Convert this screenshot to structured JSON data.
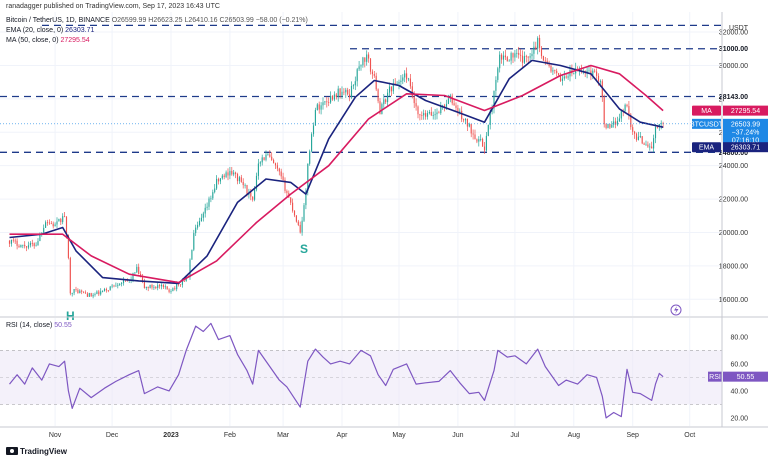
{
  "header": {
    "publisher": "ranadagger published on TradingView.com, Sep 17, 2023 16:43 UTC",
    "symbol_line": "Bitcoin / TetherUS, 1D, BINANCE",
    "ohlc": "O26599.99 H26623.25 L26410.16 C26503.99 −58.00 (−0.21%)",
    "ema_label": "EMA (20, close, 0)",
    "ema_value": "26303.71",
    "ma_label": "MA (50, close, 0)",
    "ma_value": "27295.54",
    "rsi_label": "RSI (14, close)",
    "rsi_value": "50.55"
  },
  "footer": {
    "brand": "TradingView"
  },
  "colors": {
    "ema": "#1a237e",
    "ma": "#d81b60",
    "up": "#26a69a",
    "down": "#ef5350",
    "rsi": "#7e57c2",
    "level": "#1e3a8a",
    "price_tag": "#1e88e5"
  },
  "chart_data": [
    {
      "type": "candlestick",
      "title": "Bitcoin / TetherUS, 1D, BINANCE",
      "currency": "USDT",
      "x_ticks": [
        "Nov",
        "Dec",
        "2023",
        "Feb",
        "Mar",
        "Apr",
        "May",
        "Jun",
        "Jul",
        "Aug",
        "Sep",
        "Oct"
      ],
      "y_ticks": [
        16000,
        18000,
        20000,
        22000,
        24000,
        26000,
        28000,
        30000,
        32000
      ],
      "ylim": [
        15000,
        33200
      ],
      "close_path": [
        [
          "2022-10-08",
          19500
        ],
        [
          "2022-10-15",
          19200
        ],
        [
          "2022-10-22",
          19300
        ],
        [
          "2022-10-27",
          20700
        ],
        [
          "2022-11-01",
          20400
        ],
        [
          "2022-11-06",
          21000
        ],
        [
          "2022-11-08",
          18400
        ],
        [
          "2022-11-09",
          16500
        ],
        [
          "2022-11-13",
          16500
        ],
        [
          "2022-11-20",
          16200
        ],
        [
          "2022-11-27",
          16500
        ],
        [
          "2022-12-04",
          17000
        ],
        [
          "2022-12-10",
          17100
        ],
        [
          "2022-12-14",
          17800
        ],
        [
          "2022-12-18",
          16700
        ],
        [
          "2022-12-25",
          16800
        ],
        [
          "2022-12-31",
          16550
        ],
        [
          "2023-01-05",
          16850
        ],
        [
          "2023-01-10",
          17400
        ],
        [
          "2023-01-13",
          19900
        ],
        [
          "2023-01-18",
          21000
        ],
        [
          "2023-01-25",
          23000
        ],
        [
          "2023-02-01",
          23700
        ],
        [
          "2023-02-08",
          22900
        ],
        [
          "2023-02-13",
          21800
        ],
        [
          "2023-02-16",
          24300
        ],
        [
          "2023-02-21",
          24600
        ],
        [
          "2023-02-27",
          23500
        ],
        [
          "2023-03-03",
          22400
        ],
        [
          "2023-03-10",
          20100
        ],
        [
          "2023-03-13",
          22300
        ],
        [
          "2023-03-14",
          24200
        ],
        [
          "2023-03-18",
          27400
        ],
        [
          "2023-03-24",
          27900
        ],
        [
          "2023-03-30",
          28400
        ],
        [
          "2023-04-05",
          28300
        ],
        [
          "2023-04-11",
          30200
        ],
        [
          "2023-04-14",
          30500
        ],
        [
          "2023-04-19",
          28800
        ],
        [
          "2023-04-21",
          27200
        ],
        [
          "2023-04-26",
          28600
        ],
        [
          "2023-05-05",
          29400
        ],
        [
          "2023-05-11",
          26900
        ],
        [
          "2023-05-20",
          27100
        ],
        [
          "2023-05-28",
          28000
        ],
        [
          "2023-06-02",
          27100
        ],
        [
          "2023-06-10",
          25800
        ],
        [
          "2023-06-15",
          25100
        ],
        [
          "2023-06-20",
          28300
        ],
        [
          "2023-06-23",
          30400
        ],
        [
          "2023-07-01",
          30600
        ],
        [
          "2023-07-06",
          30300
        ],
        [
          "2023-07-13",
          31400
        ],
        [
          "2023-07-17",
          30200
        ],
        [
          "2023-07-24",
          29200
        ],
        [
          "2023-08-01",
          29600
        ],
        [
          "2023-08-09",
          29700
        ],
        [
          "2023-08-15",
          29200
        ],
        [
          "2023-08-17",
          26600
        ],
        [
          "2023-08-20",
          26100
        ],
        [
          "2023-08-29",
          27700
        ],
        [
          "2023-09-01",
          25900
        ],
        [
          "2023-09-11",
          25100
        ],
        [
          "2023-09-13",
          26200
        ],
        [
          "2023-09-17",
          26504
        ]
      ],
      "series": [
        {
          "name": "EMA (20, close, 0)",
          "points": [
            [
              "2022-10-08",
              19700
            ],
            [
              "2022-10-25",
              19900
            ],
            [
              "2022-11-05",
              20300
            ],
            [
              "2022-11-12",
              18900
            ],
            [
              "2022-11-26",
              17300
            ],
            [
              "2022-12-15",
              17100
            ],
            [
              "2023-01-05",
              16950
            ],
            [
              "2023-01-20",
              18600
            ],
            [
              "2023-02-05",
              21800
            ],
            [
              "2023-02-20",
              23200
            ],
            [
              "2023-03-05",
              23000
            ],
            [
              "2023-03-13",
              22300
            ],
            [
              "2023-03-25",
              25600
            ],
            [
              "2023-04-08",
              28100
            ],
            [
              "2023-04-18",
              29100
            ],
            [
              "2023-05-01",
              28800
            ],
            [
              "2023-05-15",
              27900
            ],
            [
              "2023-06-01",
              27200
            ],
            [
              "2023-06-15",
              26600
            ],
            [
              "2023-06-28",
              29200
            ],
            [
              "2023-07-10",
              30300
            ],
            [
              "2023-07-25",
              30000
            ],
            [
              "2023-08-10",
              29500
            ],
            [
              "2023-08-25",
              27400
            ],
            [
              "2023-09-05",
              26600
            ],
            [
              "2023-09-17",
              26304
            ]
          ]
        },
        {
          "name": "MA (50, close, 0)",
          "points": [
            [
              "2022-10-08",
              19900
            ],
            [
              "2022-11-05",
              19900
            ],
            [
              "2022-11-20",
              18600
            ],
            [
              "2022-12-10",
              17500
            ],
            [
              "2023-01-05",
              17000
            ],
            [
              "2023-01-25",
              18300
            ],
            [
              "2023-02-15",
              20600
            ],
            [
              "2023-03-05",
              22300
            ],
            [
              "2023-03-25",
              24000
            ],
            [
              "2023-04-15",
              26800
            ],
            [
              "2023-05-05",
              28300
            ],
            [
              "2023-05-25",
              28200
            ],
            [
              "2023-06-15",
              27300
            ],
            [
              "2023-07-05",
              28200
            ],
            [
              "2023-07-25",
              29400
            ],
            [
              "2023-08-10",
              30000
            ],
            [
              "2023-08-25",
              29500
            ],
            [
              "2023-09-08",
              28200
            ],
            [
              "2023-09-17",
              27296
            ]
          ]
        }
      ],
      "horizontal_levels": [
        {
          "value": 32400,
          "label": ""
        },
        {
          "value": 31000,
          "label": "31000.00"
        },
        {
          "value": 28143,
          "label": "28143.00"
        },
        {
          "value": 24800,
          "label": "24800.00"
        }
      ],
      "price_tags": [
        {
          "label": "MA",
          "value": "27295.54",
          "price": 27295.54,
          "color": "#d81b60"
        },
        {
          "label": "BTCUSDT",
          "value": "26503.99",
          "sub": "−37.24%",
          "sub2": "07:16:10",
          "price": 26503.99,
          "color": "#1e88e5"
        },
        {
          "label": "EMA",
          "value": "26303.71",
          "price": 26303.71,
          "color": "#1a237e"
        }
      ],
      "annotations": [
        {
          "text": "H",
          "date": "2022-11-09",
          "price": 15000
        },
        {
          "text": "S",
          "date": "2023-03-12",
          "price": 19000
        }
      ]
    },
    {
      "type": "line",
      "title": "RSI (14, close)",
      "y_ticks": [
        20,
        40,
        60,
        80
      ],
      "ylim": [
        14,
        94
      ],
      "band": [
        30,
        70
      ],
      "midline": 50,
      "current": {
        "label": "RSI",
        "value": "50.55"
      },
      "series": [
        {
          "name": "RSI (14, close)",
          "points": [
            [
              "2022-10-08",
              45
            ],
            [
              "2022-10-12",
              52
            ],
            [
              "2022-10-16",
              45
            ],
            [
              "2022-10-20",
              57
            ],
            [
              "2022-10-25",
              48
            ],
            [
              "2022-10-29",
              60
            ],
            [
              "2022-11-03",
              58
            ],
            [
              "2022-11-06",
              62
            ],
            [
              "2022-11-08",
              40
            ],
            [
              "2022-11-10",
              27
            ],
            [
              "2022-11-14",
              42
            ],
            [
              "2022-11-20",
              35
            ],
            [
              "2022-11-27",
              42
            ],
            [
              "2022-12-03",
              47
            ],
            [
              "2022-12-10",
              52
            ],
            [
              "2022-12-15",
              55
            ],
            [
              "2022-12-18",
              38
            ],
            [
              "2022-12-25",
              43
            ],
            [
              "2022-12-31",
              40
            ],
            [
              "2023-01-05",
              52
            ],
            [
              "2023-01-09",
              70
            ],
            [
              "2023-01-14",
              88
            ],
            [
              "2023-01-18",
              84
            ],
            [
              "2023-01-22",
              90
            ],
            [
              "2023-01-26",
              78
            ],
            [
              "2023-02-01",
              81
            ],
            [
              "2023-02-05",
              67
            ],
            [
              "2023-02-10",
              55
            ],
            [
              "2023-02-13",
              45
            ],
            [
              "2023-02-16",
              70
            ],
            [
              "2023-02-21",
              60
            ],
            [
              "2023-02-27",
              48
            ],
            [
              "2023-03-03",
              43
            ],
            [
              "2023-03-10",
              28
            ],
            [
              "2023-03-14",
              62
            ],
            [
              "2023-03-18",
              71
            ],
            [
              "2023-03-22",
              65
            ],
            [
              "2023-03-26",
              60
            ],
            [
              "2023-03-31",
              62
            ],
            [
              "2023-04-05",
              60
            ],
            [
              "2023-04-11",
              70
            ],
            [
              "2023-04-16",
              66
            ],
            [
              "2023-04-20",
              52
            ],
            [
              "2023-04-24",
              44
            ],
            [
              "2023-04-28",
              56
            ],
            [
              "2023-05-05",
              60
            ],
            [
              "2023-05-10",
              45
            ],
            [
              "2023-05-15",
              46
            ],
            [
              "2023-05-22",
              47
            ],
            [
              "2023-05-28",
              55
            ],
            [
              "2023-06-02",
              46
            ],
            [
              "2023-06-07",
              38
            ],
            [
              "2023-06-12",
              39
            ],
            [
              "2023-06-15",
              33
            ],
            [
              "2023-06-20",
              55
            ],
            [
              "2023-06-22",
              70
            ],
            [
              "2023-06-27",
              65
            ],
            [
              "2023-07-01",
              66
            ],
            [
              "2023-07-07",
              60
            ],
            [
              "2023-07-13",
              71
            ],
            [
              "2023-07-17",
              58
            ],
            [
              "2023-07-24",
              44
            ],
            [
              "2023-07-28",
              48
            ],
            [
              "2023-08-03",
              45
            ],
            [
              "2023-08-08",
              52
            ],
            [
              "2023-08-13",
              50
            ],
            [
              "2023-08-16",
              36
            ],
            [
              "2023-08-18",
              20
            ],
            [
              "2023-08-22",
              24
            ],
            [
              "2023-08-26",
              21
            ],
            [
              "2023-08-29",
              56
            ],
            [
              "2023-09-01",
              39
            ],
            [
              "2023-09-05",
              38
            ],
            [
              "2023-09-11",
              33
            ],
            [
              "2023-09-13",
              45
            ],
            [
              "2023-09-15",
              53
            ],
            [
              "2023-09-17",
              50.55
            ]
          ]
        }
      ]
    }
  ]
}
